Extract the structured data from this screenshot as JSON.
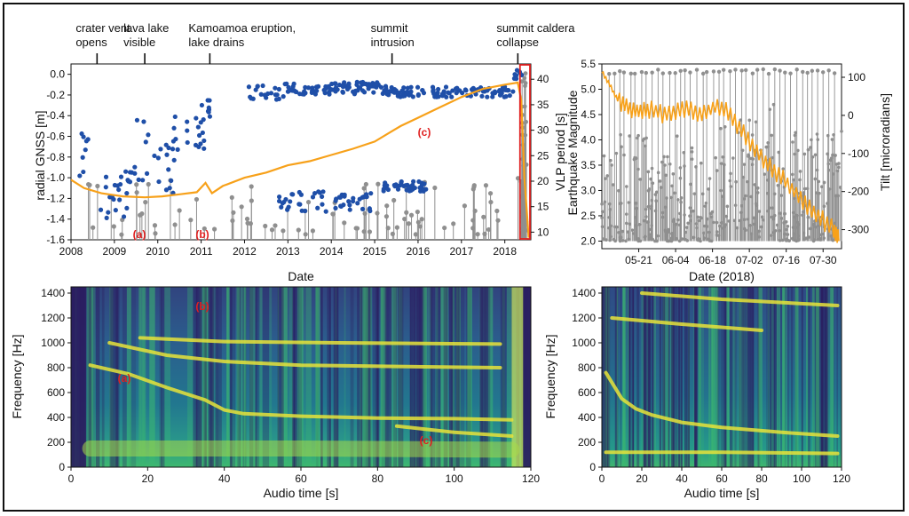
{
  "colors": {
    "gnss": "#f7a11a",
    "vlp": "#1f4fa8",
    "quake": "#8f8f8f",
    "marker": "#e02020",
    "box": "#e02020"
  },
  "annotations": [
    {
      "line1": "crater vent",
      "line2": "opens",
      "year": 2008.6
    },
    {
      "line1": "lava lake",
      "line2": "visible",
      "year": 2009.7
    },
    {
      "line1": "Kamoamoa eruption,",
      "line2": "lake drains",
      "year": 2011.2
    },
    {
      "line1": "summit",
      "line2": "intrusion",
      "year": 2015.4
    },
    {
      "line1": "summit caldera",
      "line2": "collapse",
      "year": 2018.3
    }
  ],
  "markers": {
    "a": "(a)",
    "b": "(b)",
    "c": "(c)"
  },
  "chart_data": [
    {
      "type": "line",
      "id": "top_left",
      "xlabel": "Date",
      "ylabel_left": "radial GNSS [m]",
      "ylabel_right": "VLP period [s]",
      "xlim": [
        2008,
        2018.6
      ],
      "ylim_left": [
        -1.6,
        0.1
      ],
      "ylim_right": [
        8.5,
        43
      ],
      "xticks": [
        "2008",
        "2009",
        "2010",
        "2011",
        "2012",
        "2013",
        "2014",
        "2015",
        "2016",
        "2017",
        "2018"
      ],
      "yticks_left": [
        "-1.6",
        "-1.4",
        "-1.2",
        "-1.0",
        "-0.8",
        "-0.6",
        "-0.4",
        "-0.2",
        "0.0"
      ],
      "yticks_right": [
        "10",
        "15",
        "20",
        "25",
        "30",
        "35",
        "40"
      ],
      "gnss_series": {
        "name": "radial GNSS",
        "x": [
          2008,
          2008.3,
          2008.7,
          2009.2,
          2009.7,
          2010.1,
          2010.5,
          2010.9,
          2011.1,
          2011.25,
          2011.5,
          2012,
          2012.5,
          2013,
          2013.5,
          2014,
          2014.5,
          2015,
          2015.4,
          2015.6,
          2016,
          2016.5,
          2017,
          2017.5,
          2018,
          2018.3,
          2018.38,
          2018.45,
          2018.55
        ],
        "y": [
          -1.02,
          -1.1,
          -1.15,
          -1.18,
          -1.19,
          -1.18,
          -1.16,
          -1.14,
          -1.05,
          -1.15,
          -1.08,
          -1.0,
          -0.95,
          -0.88,
          -0.84,
          -0.78,
          -0.72,
          -0.65,
          -0.55,
          -0.5,
          -0.42,
          -0.32,
          -0.22,
          -0.14,
          -0.1,
          -0.08,
          -0.25,
          -1.0,
          -1.58
        ]
      },
      "vlp_clusters": [
        {
          "x0": 2008.2,
          "x1": 2008.4,
          "y0": 21,
          "y1": 30
        },
        {
          "x0": 2008.5,
          "x1": 2009.4,
          "y0": 12,
          "y1": 22
        },
        {
          "x0": 2009.4,
          "x1": 2009.8,
          "y0": 20,
          "y1": 33
        },
        {
          "x0": 2009.9,
          "x1": 2010.4,
          "y0": 17,
          "y1": 30
        },
        {
          "x0": 2010.3,
          "x1": 2011.1,
          "y0": 26,
          "y1": 33
        },
        {
          "x0": 2011.0,
          "x1": 2011.25,
          "y0": 32,
          "y1": 36
        },
        {
          "x0": 2012.1,
          "x1": 2012.9,
          "y0": 36,
          "y1": 39
        },
        {
          "x0": 2012.9,
          "x1": 2015.3,
          "y0": 37,
          "y1": 39.5
        },
        {
          "x0": 2015.3,
          "x1": 2018.2,
          "y0": 36.5,
          "y1": 38.5
        },
        {
          "x0": 2015.2,
          "x1": 2016.2,
          "y0": 18,
          "y1": 20
        },
        {
          "x0": 2012.8,
          "x1": 2015.0,
          "y0": 14,
          "y1": 18
        },
        {
          "x0": 2018.2,
          "x1": 2018.4,
          "y0": 38,
          "y1": 42
        }
      ],
      "quake_stems": {
        "x_start": 2008.4,
        "x_end": 2018.45,
        "count": 95,
        "mag_min": -1.55,
        "mag_max": -1.0
      }
    },
    {
      "type": "line",
      "id": "top_right",
      "xlabel": "Date (2018)",
      "ylabel_left": "Earthquake Magnitude",
      "ylabel_right": "Tilt [microradians]",
      "xticks": [
        "05-21",
        "06-04",
        "06-18",
        "07-02",
        "07-16",
        "07-30"
      ],
      "xtick_days": [
        16,
        30,
        44,
        58,
        72,
        86
      ],
      "xlim": [
        2,
        93
      ],
      "ylim_left": [
        1.85,
        5.5
      ],
      "ylim_right": [
        -350,
        135
      ],
      "yticks_left": [
        "2.0",
        "2.5",
        "3.0",
        "3.5",
        "4.0",
        "4.5",
        "5.0",
        "5.5"
      ],
      "yticks_right": [
        "-300",
        "-200",
        "-100",
        "0",
        "100"
      ],
      "tilt_series": {
        "name": "Tilt",
        "x": [
          2,
          5,
          8,
          12,
          16,
          20,
          25,
          30,
          35,
          40,
          45,
          50,
          55,
          60,
          65,
          70,
          75,
          80,
          85,
          90,
          92
        ],
        "y": [
          115,
          80,
          40,
          20,
          10,
          15,
          5,
          10,
          20,
          0,
          25,
          10,
          -40,
          -90,
          -130,
          -160,
          -200,
          -240,
          -270,
          -300,
          -330
        ]
      }
    },
    {
      "type": "heatmap",
      "id": "bottom_left",
      "xlabel": "Audio time [s]",
      "ylabel": "Frequency [Hz]",
      "xlim": [
        0,
        120
      ],
      "ylim": [
        0,
        1450
      ],
      "xticks": [
        "0",
        "20",
        "40",
        "60",
        "80",
        "100",
        "120"
      ],
      "yticks": [
        "0",
        "200",
        "400",
        "600",
        "800",
        "1000",
        "1200",
        "1400"
      ]
    },
    {
      "type": "heatmap",
      "id": "bottom_right",
      "xlabel": "Audio time [s]",
      "ylabel": "Frequency [Hz]",
      "xlim": [
        0,
        120
      ],
      "ylim": [
        0,
        1450
      ],
      "xticks": [
        "0",
        "20",
        "40",
        "60",
        "80",
        "100",
        "120"
      ],
      "yticks": [
        "0",
        "200",
        "400",
        "600",
        "800",
        "1000",
        "1200",
        "1400"
      ]
    }
  ]
}
